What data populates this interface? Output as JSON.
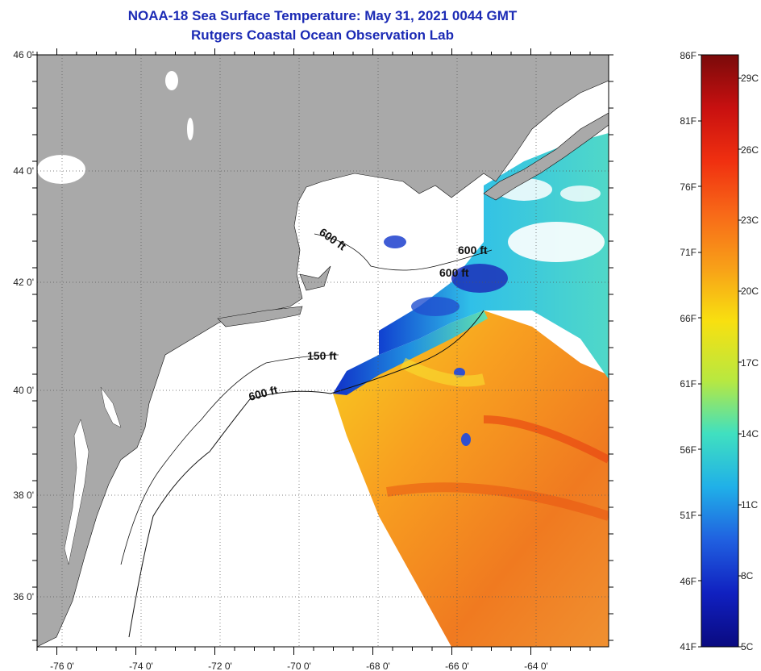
{
  "header": {
    "title": "NOAA-18 Sea Surface Temperature:  May 31, 2021 0044 GMT",
    "subtitle": "Rutgers Coastal Ocean Observation Lab"
  },
  "map": {
    "lon_labels": [
      "-76 0'",
      "-74 0'",
      "-72 0'",
      "-70 0'",
      "-68 0'",
      "-66 0'",
      "-64 0'"
    ],
    "lat_labels": [
      "46 0'",
      "44 0'",
      "42 0'",
      "40 0'",
      "38 0'",
      "36 0'"
    ],
    "contour_labels": [
      "600 ft",
      "600 ft",
      "600 ft",
      "150 ft",
      "600 ft"
    ]
  },
  "colorbar": {
    "fahrenheit_labels": [
      "86F",
      "81F",
      "76F",
      "71F",
      "66F",
      "61F",
      "56F",
      "51F",
      "46F",
      "41F"
    ],
    "celsius_labels": [
      "29C",
      "26C",
      "23C",
      "20C",
      "17C",
      "14C",
      "11C",
      "8C",
      "5C"
    ],
    "colors": [
      "#7a0a0a",
      "#c81010",
      "#f03010",
      "#f86a18",
      "#f8a018",
      "#f8e010",
      "#b8e840",
      "#40e0c0",
      "#20b0e8",
      "#2060e0",
      "#1020c0",
      "#0a0a80"
    ]
  },
  "colors": {
    "land": "#a9a9a9",
    "ocean_no_data": "#ffffff",
    "title": "#1c2bb5"
  }
}
